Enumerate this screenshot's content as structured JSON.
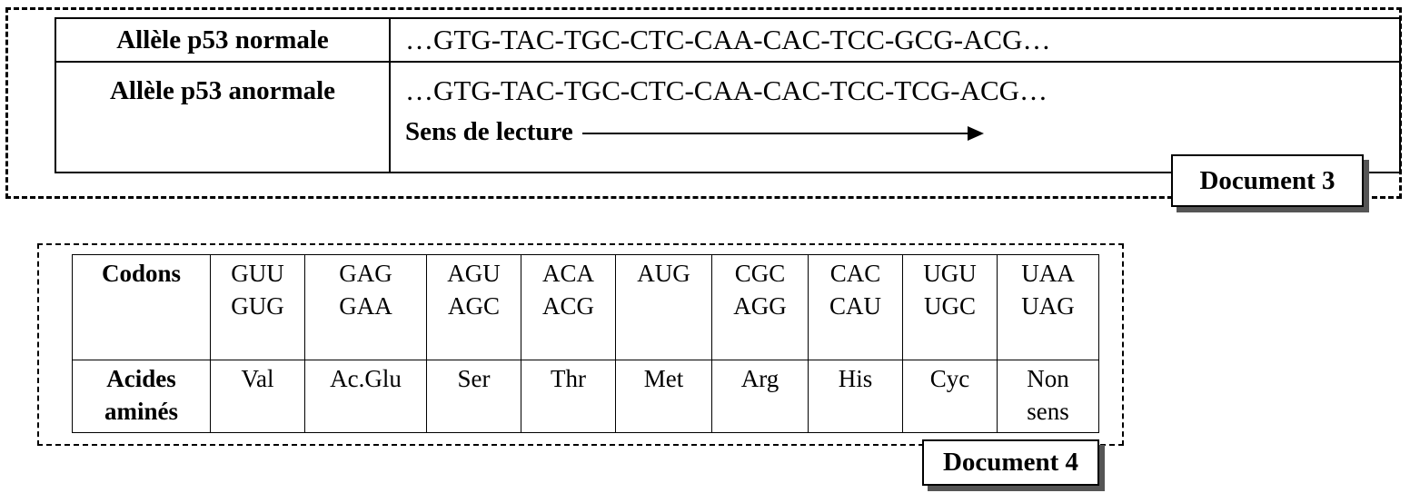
{
  "document3": {
    "rows": [
      {
        "label": "Allèle p53 normale",
        "sequence": "…GTG-TAC-TGC-CTC-CAA-CAC-TCC-GCG-ACG…"
      },
      {
        "label": "Allèle p53 anormale",
        "sequence": "…GTG-TAC-TGC-CTC-CAA-CAC-TCC-TCG-ACG…"
      }
    ],
    "reading_direction_label": "Sens de lecture",
    "badge": "Document 3"
  },
  "document4": {
    "codons_header": "Codons",
    "amino_header_line1": "Acides",
    "amino_header_line2": "aminés",
    "columns": [
      {
        "codons": [
          "GUU",
          "GUG"
        ],
        "amino": [
          "Val"
        ]
      },
      {
        "codons": [
          "GAG",
          "GAA"
        ],
        "amino": [
          "Ac.Glu"
        ]
      },
      {
        "codons": [
          "AGU",
          "AGC"
        ],
        "amino": [
          "Ser"
        ]
      },
      {
        "codons": [
          "ACA",
          "ACG"
        ],
        "amino": [
          "Thr"
        ]
      },
      {
        "codons": [
          "AUG"
        ],
        "amino": [
          "Met"
        ]
      },
      {
        "codons": [
          "CGC",
          "AGG"
        ],
        "amino": [
          "Arg"
        ]
      },
      {
        "codons": [
          "CAC",
          "CAU"
        ],
        "amino": [
          "His"
        ]
      },
      {
        "codons": [
          "UGU",
          "UGC"
        ],
        "amino": [
          "Cyc"
        ]
      },
      {
        "codons": [
          "UAA",
          "UAG"
        ],
        "amino": [
          "Non",
          "sens"
        ]
      }
    ],
    "badge": "Document 4"
  }
}
